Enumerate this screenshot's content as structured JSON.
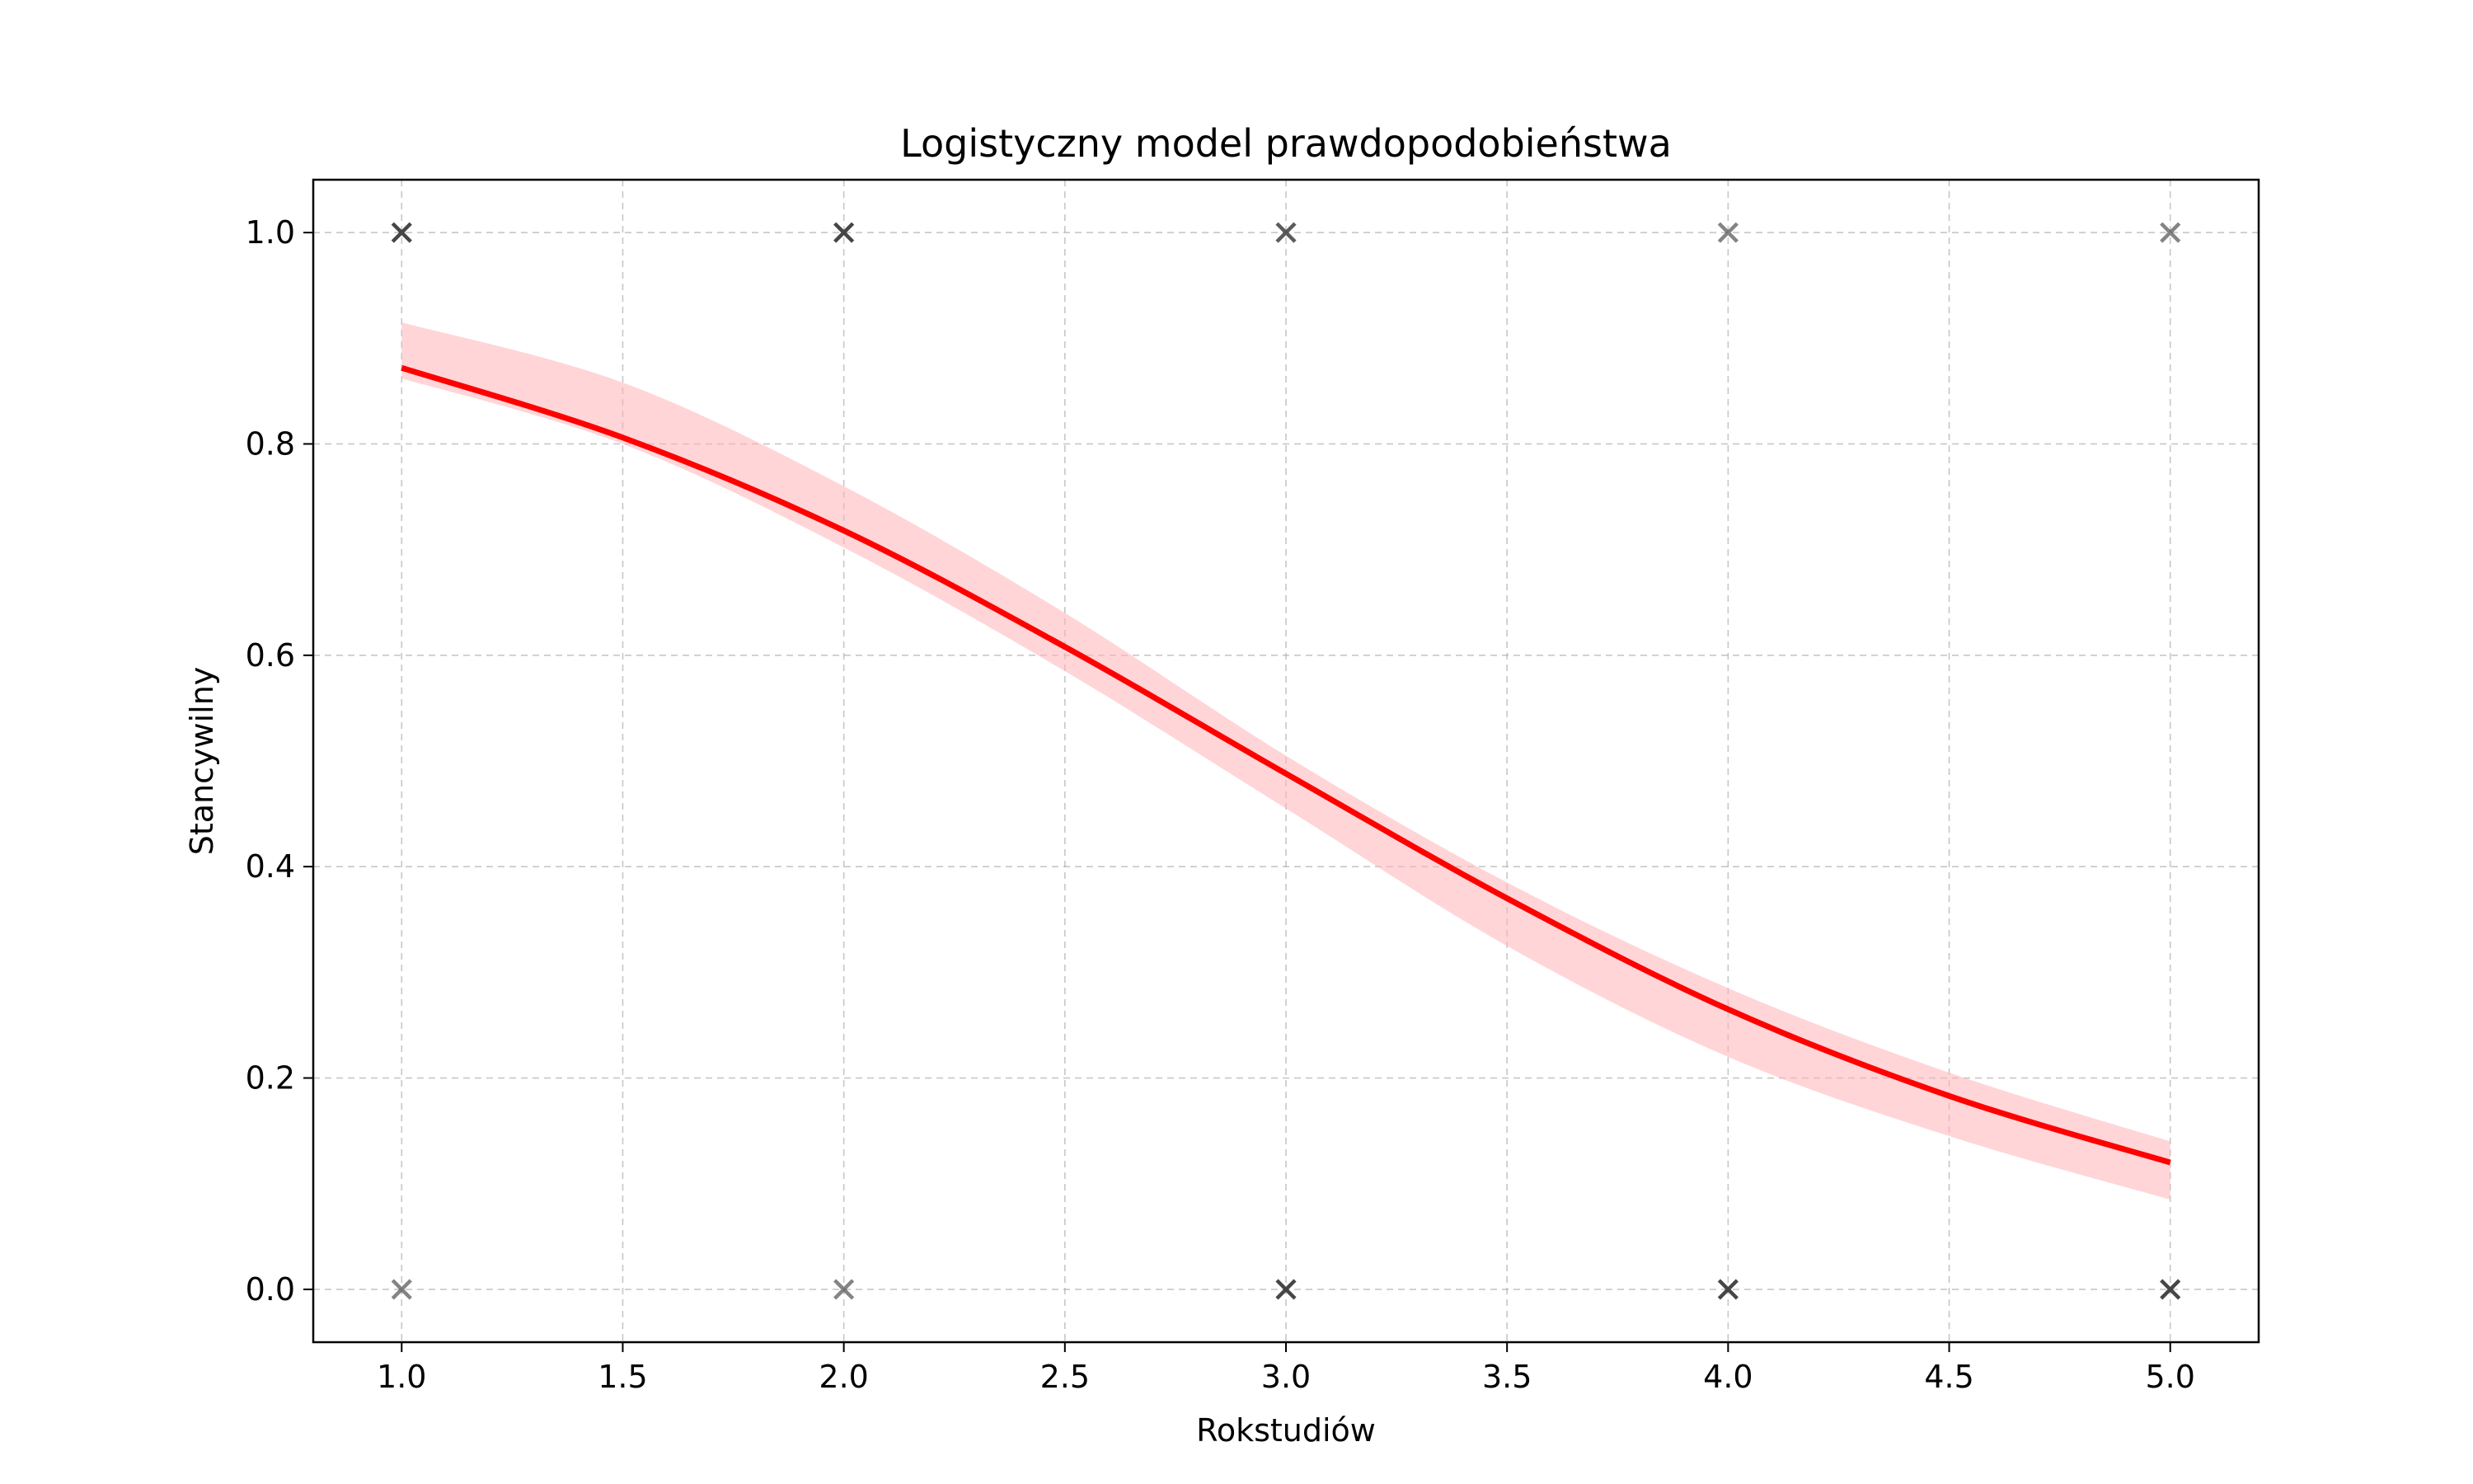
{
  "chart_data": {
    "type": "line",
    "title": "Logistyczny model prawdopodobieństwa",
    "xlabel": "Rokstudiów",
    "ylabel": "Stancywilny",
    "xlim": [
      0.8,
      5.2
    ],
    "ylim": [
      -0.05,
      1.05
    ],
    "xticks": [
      1.0,
      1.5,
      2.0,
      2.5,
      3.0,
      3.5,
      4.0,
      4.5,
      5.0
    ],
    "xtick_labels": [
      "1.0",
      "1.5",
      "2.0",
      "2.5",
      "3.0",
      "3.5",
      "4.0",
      "4.5",
      "5.0"
    ],
    "yticks": [
      0.0,
      0.2,
      0.4,
      0.6,
      0.8,
      1.0
    ],
    "ytick_labels": [
      "0.0",
      "0.2",
      "0.4",
      "0.6",
      "0.8",
      "1.0"
    ],
    "grid": true,
    "colors": {
      "fit_line": "#ff0000",
      "confidence_band": "#ffb3b8",
      "points": "#333333"
    },
    "fit_line": {
      "x": [
        1.0,
        1.5,
        2.0,
        2.5,
        3.0,
        3.5,
        4.0,
        4.5,
        5.0
      ],
      "y": [
        0.872,
        0.806,
        0.718,
        0.608,
        0.488,
        0.37,
        0.265,
        0.183,
        0.12
      ]
    },
    "confidence_band": {
      "x": [
        1.0,
        1.5,
        2.0,
        2.5,
        3.0,
        3.5,
        4.0,
        4.5,
        5.0
      ],
      "lower": [
        0.862,
        0.8,
        0.702,
        0.585,
        0.455,
        0.325,
        0.22,
        0.145,
        0.085
      ],
      "upper": [
        0.915,
        0.858,
        0.76,
        0.64,
        0.505,
        0.385,
        0.285,
        0.205,
        0.14
      ]
    },
    "scatter": {
      "marker": "x",
      "x": [
        1,
        1,
        2,
        2,
        3,
        3,
        4,
        4,
        5,
        5
      ],
      "y": [
        1,
        0,
        1,
        0,
        1,
        0,
        1,
        0,
        1,
        0
      ],
      "opacity": [
        0.9,
        0.6,
        0.9,
        0.6,
        0.8,
        0.9,
        0.6,
        0.9,
        0.6,
        0.9
      ]
    }
  }
}
